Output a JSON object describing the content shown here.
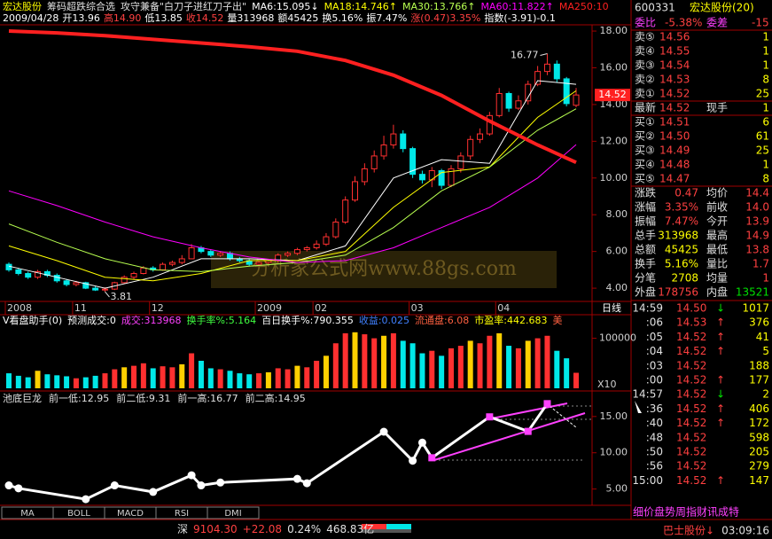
{
  "chart_data": [
    {
      "type": "candlestick",
      "title": "宏达股份",
      "subtitles": [
        "筹码超跌综合选",
        "攻守兼备\"白刀子进红刀子出\""
      ],
      "info": [
        {
          "text": "2009/04/28",
          "color": "#ffffff"
        },
        {
          "text": "开13.96",
          "color": "#ffffff"
        },
        {
          "text": "高14.90",
          "color": "#ff4040"
        },
        {
          "text": "低13.85",
          "color": "#ffffff"
        },
        {
          "text": "收14.52",
          "color": "#ff4040"
        },
        {
          "text": "量313968",
          "color": "#ffffff"
        },
        {
          "text": "额45425",
          "color": "#ffffff"
        },
        {
          "text": "换5.16%",
          "color": "#ffffff"
        },
        {
          "text": "振7.47%",
          "color": "#ffffff"
        },
        {
          "text": "涨(0.47)3.35%",
          "color": "#ff4040"
        },
        {
          "text": "指数(-3.91)-0.1",
          "color": "#ffffff"
        }
      ],
      "period": "日线",
      "categories": [
        "2008",
        null,
        null,
        null,
        null,
        null,
        null,
        "11",
        null,
        null,
        null,
        null,
        null,
        null,
        null,
        "12",
        null,
        null,
        null,
        null,
        null,
        null,
        null,
        null,
        null,
        null,
        "2009",
        null,
        null,
        null,
        null,
        null,
        "02",
        null,
        null,
        null,
        null,
        null,
        null,
        null,
        null,
        null,
        "03",
        null,
        null,
        null,
        null,
        null,
        null,
        null,
        null,
        "04",
        null,
        null,
        null,
        null,
        null,
        null,
        null,
        null
      ],
      "open": [
        5.3,
        5.0,
        4.8,
        4.6,
        4.9,
        4.7,
        4.4,
        4.2,
        4.3,
        4.0,
        3.9,
        3.95,
        4.3,
        4.6,
        4.8,
        5.1,
        5.0,
        5.3,
        5.4,
        5.6,
        6.2,
        6.0,
        5.8,
        5.9,
        5.6,
        5.5,
        5.3,
        5.4,
        5.5,
        5.8,
        5.9,
        6.1,
        6.2,
        6.4,
        6.8,
        7.6,
        8.8,
        9.8,
        10.5,
        11.2,
        11.8,
        12.4,
        11.6,
        10.2,
        9.9,
        10.4,
        9.6,
        10.5,
        11.2,
        12.1,
        12.4,
        13.4,
        14.6,
        13.8,
        14.2,
        15.1,
        15.8,
        16.2,
        15.4,
        13.96
      ],
      "high": [
        5.4,
        5.1,
        4.9,
        5.0,
        5.0,
        4.8,
        4.5,
        4.4,
        4.35,
        4.1,
        4.05,
        4.35,
        4.7,
        4.9,
        5.2,
        5.2,
        5.4,
        5.5,
        5.8,
        6.4,
        6.3,
        6.1,
        6.0,
        6.0,
        5.7,
        5.6,
        5.5,
        5.6,
        5.9,
        6.0,
        6.2,
        6.3,
        6.6,
        7.0,
        7.8,
        9.0,
        10.1,
        10.8,
        11.5,
        12.3,
        12.9,
        12.6,
        11.7,
        10.4,
        10.6,
        10.5,
        10.7,
        11.4,
        12.3,
        12.7,
        13.6,
        14.9,
        14.7,
        14.5,
        15.3,
        16.1,
        16.77,
        16.4,
        15.5,
        14.9
      ],
      "low": [
        4.9,
        4.7,
        4.5,
        4.5,
        4.6,
        4.3,
        4.1,
        4.1,
        3.95,
        3.85,
        3.81,
        3.9,
        4.25,
        4.5,
        4.75,
        4.9,
        4.95,
        5.2,
        5.3,
        5.6,
        5.9,
        5.7,
        5.7,
        5.5,
        5.4,
        5.2,
        5.2,
        5.3,
        5.4,
        5.7,
        5.8,
        6.0,
        6.1,
        6.3,
        6.7,
        7.5,
        8.7,
        9.6,
        10.3,
        11.0,
        11.6,
        11.4,
        10.0,
        9.7,
        9.5,
        9.4,
        9.5,
        10.3,
        11.0,
        11.9,
        12.3,
        13.3,
        13.6,
        13.7,
        14.0,
        15.0,
        15.6,
        15.2,
        13.9,
        13.85
      ],
      "close": [
        5.0,
        4.8,
        4.6,
        4.9,
        4.7,
        4.4,
        4.2,
        4.3,
        4.0,
        3.9,
        3.95,
        4.3,
        4.6,
        4.8,
        5.1,
        5.0,
        5.3,
        5.4,
        5.6,
        6.2,
        6.0,
        5.8,
        5.9,
        5.6,
        5.5,
        5.3,
        5.4,
        5.5,
        5.8,
        5.9,
        6.1,
        6.2,
        6.4,
        6.8,
        7.6,
        8.8,
        9.8,
        10.5,
        11.2,
        11.8,
        12.4,
        11.6,
        10.2,
        9.9,
        10.4,
        9.6,
        10.5,
        11.2,
        12.1,
        12.4,
        13.4,
        14.6,
        13.8,
        14.2,
        15.1,
        15.8,
        16.2,
        15.4,
        14.05,
        14.52
      ],
      "up_color": "#ff3030",
      "down_color": "#00e8e8",
      "series": [
        {
          "name": "MA6:15.095↓",
          "color": "#ffffff",
          "width": 1,
          "x": [
            0,
            5,
            10,
            15,
            20,
            25,
            30,
            35,
            40,
            45,
            50,
            55,
            59
          ],
          "values": [
            5.2,
            4.6,
            4.0,
            4.6,
            5.6,
            5.6,
            5.5,
            6.3,
            10.0,
            11.0,
            10.8,
            15.3,
            15.1
          ]
        },
        {
          "name": "MA18:14.746↑",
          "color": "#ffff00",
          "width": 1,
          "x": [
            0,
            5,
            10,
            15,
            20,
            25,
            30,
            35,
            40,
            45,
            50,
            55,
            59
          ],
          "values": [
            6.3,
            5.5,
            4.6,
            4.4,
            4.8,
            5.5,
            5.5,
            6.0,
            8.4,
            10.3,
            10.6,
            13.3,
            14.75
          ]
        },
        {
          "name": "MA30:13.766↑",
          "color": "#b8ff50",
          "width": 1,
          "x": [
            0,
            5,
            10,
            15,
            20,
            25,
            30,
            35,
            40,
            45,
            50,
            55,
            59
          ],
          "values": [
            7.5,
            6.5,
            5.6,
            5.0,
            4.9,
            5.2,
            5.4,
            5.8,
            7.3,
            9.3,
            10.6,
            12.6,
            13.77
          ]
        },
        {
          "name": "MA60:11.822↑",
          "color": "#ff00ff",
          "width": 1,
          "x": [
            0,
            5,
            10,
            15,
            20,
            25,
            30,
            35,
            40,
            45,
            50,
            55,
            59
          ],
          "values": [
            9.3,
            8.5,
            7.6,
            6.8,
            6.2,
            5.7,
            5.4,
            5.5,
            6.2,
            7.3,
            8.4,
            10.0,
            11.82
          ]
        },
        {
          "name": "MA250:10",
          "color": "#ff2020",
          "width": 4,
          "x": [
            0,
            5,
            10,
            15,
            20,
            25,
            30,
            35,
            40,
            45,
            50,
            55,
            59
          ],
          "values": [
            18.0,
            17.9,
            17.75,
            17.55,
            17.35,
            17.15,
            16.9,
            16.4,
            15.6,
            14.5,
            13.1,
            11.8,
            10.85
          ]
        }
      ],
      "annotations": [
        {
          "text": "16.77",
          "value": 16.77
        },
        {
          "text": "3.81",
          "value": 3.81
        },
        {
          "text": "14.52",
          "value": 14.52
        }
      ],
      "ylim": [
        3.28,
        18.34
      ],
      "yticks": [
        {
          "value": 4,
          "label": "4.00"
        },
        {
          "value": 6,
          "label": "6.00"
        },
        {
          "value": 8,
          "label": "8.00"
        },
        {
          "value": 10,
          "label": "10.00"
        },
        {
          "value": 12,
          "label": "12.00"
        },
        {
          "value": 14,
          "label": "14.00"
        },
        {
          "value": 16,
          "label": "16.00"
        },
        {
          "value": 18,
          "label": "18.00"
        }
      ]
    },
    {
      "type": "bar",
      "info": [
        {
          "text": "V看盘助手(0)",
          "color": "#ffffff"
        },
        {
          "text": "预测成交:0",
          "color": "#ffffff"
        },
        {
          "text": "成交:313968",
          "color": "#ff40ff"
        },
        {
          "text": "换手率%:5.164",
          "color": "#40ff40"
        },
        {
          "text": "百日换手%:790.355",
          "color": "#ffffff"
        },
        {
          "text": "收益:0.025",
          "color": "#4080ff"
        },
        {
          "text": "流通盘:6.08",
          "color": "#ff6040"
        },
        {
          "text": "市盈率:442.683",
          "color": "#ffff00"
        },
        {
          "text": "美",
          "color": "#ff6040"
        }
      ],
      "values": [
        30000,
        25000,
        22000,
        35000,
        28000,
        26000,
        24000,
        20000,
        22000,
        25000,
        30000,
        38000,
        42000,
        45000,
        50000,
        40000,
        44000,
        42000,
        48000,
        70000,
        55000,
        40000,
        38000,
        35000,
        30000,
        28000,
        30000,
        32000,
        40000,
        38000,
        45000,
        42000,
        55000,
        65000,
        90000,
        110000,
        112000,
        108000,
        100000,
        105000,
        110000,
        95000,
        90000,
        70000,
        75000,
        65000,
        80000,
        85000,
        95000,
        90000,
        105000,
        110000,
        85000,
        80000,
        95000,
        100000,
        105000,
        75000,
        60000,
        31000
      ],
      "multiplier": "X10",
      "ylim": [
        0,
        117000
      ],
      "yticks": [
        100000
      ]
    },
    {
      "type": "line",
      "title": "池底巨龙",
      "info": [
        {
          "text": "前一低:12.95",
          "color": "#e0e0e0"
        },
        {
          "text": "前二低:9.31",
          "color": "#e0e0e0"
        },
        {
          "text": "前一高:16.77",
          "color": "#e0e0e0"
        },
        {
          "text": "前二高:14.95",
          "color": "#e0e0e0"
        }
      ],
      "x": [
        0,
        1,
        8,
        11,
        15,
        19,
        20,
        22,
        30,
        31,
        39,
        42,
        43,
        44,
        50,
        54,
        56
      ],
      "values": [
        5.5,
        5.1,
        3.6,
        5.5,
        4.6,
        6.9,
        5.5,
        5.9,
        6.4,
        5.8,
        12.9,
        8.9,
        11.4,
        9.31,
        14.95,
        12.95,
        16.77
      ],
      "color": "#ffffff",
      "pivot_color": "#ff40ff",
      "pivots_from": 13,
      "ylim": [
        3.0,
        18.4
      ],
      "yticks": [
        {
          "value": 5,
          "label": "5.00"
        },
        {
          "value": 10,
          "label": "10.00"
        },
        {
          "value": 15,
          "label": "15.00"
        }
      ]
    }
  ],
  "watermark": "分析家公式网www.88gs.com",
  "tabs": [
    "MA",
    "BOLL",
    "MACD",
    "RSI",
    "DMI"
  ],
  "quote_panel": {
    "code": "600331",
    "name": "宏达股份(20)",
    "ratio": [
      "委比",
      "-5.38%",
      "委差",
      "-15"
    ],
    "sells": [
      [
        "卖⑤",
        "14.56",
        "1"
      ],
      [
        "卖④",
        "14.55",
        "1"
      ],
      [
        "卖③",
        "14.54",
        "1"
      ],
      [
        "卖②",
        "14.53",
        "8"
      ],
      [
        "卖①",
        "14.52",
        "25"
      ]
    ],
    "latest": [
      "最新",
      "14.52",
      "现手",
      "1"
    ],
    "buys": [
      [
        "买①",
        "14.51",
        "6"
      ],
      [
        "买②",
        "14.50",
        "61"
      ],
      [
        "买③",
        "14.49",
        "25"
      ],
      [
        "买④",
        "14.48",
        "1"
      ],
      [
        "买⑤",
        "14.47",
        "8"
      ]
    ],
    "stats": [
      [
        "涨跌",
        "0.47",
        "均价",
        "14.4"
      ],
      [
        "涨幅",
        "3.35%",
        "前收",
        "14.0"
      ],
      [
        "振幅",
        "7.47%",
        "今开",
        "13.9"
      ],
      [
        "总手",
        "313968",
        "最高",
        "14.9"
      ],
      [
        "总额",
        "45425",
        "最低",
        "13.8"
      ],
      [
        "换手",
        "5.16%",
        "量比",
        "1.7"
      ],
      [
        "分笔",
        "2708",
        "均量",
        "1"
      ]
    ],
    "outer": [
      "外盘",
      "178756",
      "内盘",
      "13521"
    ],
    "ticks": [
      {
        "time": "14:59",
        "price": "14.50",
        "arrow": "↓",
        "vol": "1017"
      },
      {
        "time": ":06",
        "price": "14.53",
        "arrow": "↑",
        "vol": "376"
      },
      {
        "time": ":05",
        "price": "14.52",
        "arrow": "↑",
        "vol": "41"
      },
      {
        "time": ":04",
        "price": "14.52",
        "arrow": "↑",
        "vol": "5"
      },
      {
        "time": ":03",
        "price": "14.52",
        "vol": "188"
      },
      {
        "time": ":00",
        "price": "14.52",
        "arrow": "↑",
        "vol": "177"
      },
      {
        "time": "14:57",
        "price": "14.52",
        "arrow": "↓",
        "vol": "2"
      },
      {
        "time": ":36",
        "price": "14.52",
        "arrow": "↑",
        "vol": "406"
      },
      {
        "time": ":40",
        "price": "14.52",
        "arrow": "↑",
        "vol": "172"
      },
      {
        "time": ":48",
        "price": "14.52",
        "vol": "598"
      },
      {
        "time": ":50",
        "price": "14.52",
        "vol": "205"
      },
      {
        "time": ":56",
        "price": "14.52",
        "vol": "279"
      },
      {
        "time": "15:00",
        "price": "14.52",
        "arrow": "↑",
        "vol": "147"
      }
    ],
    "menu": "细价盘势周指财讯成特"
  },
  "status_bar": {
    "market": "深",
    "index": "9104.30",
    "change": "+22.08",
    "percent": "0.24%",
    "amount": "468.83亿",
    "stock": "巴士股份↓",
    "time": "03:09:16"
  }
}
